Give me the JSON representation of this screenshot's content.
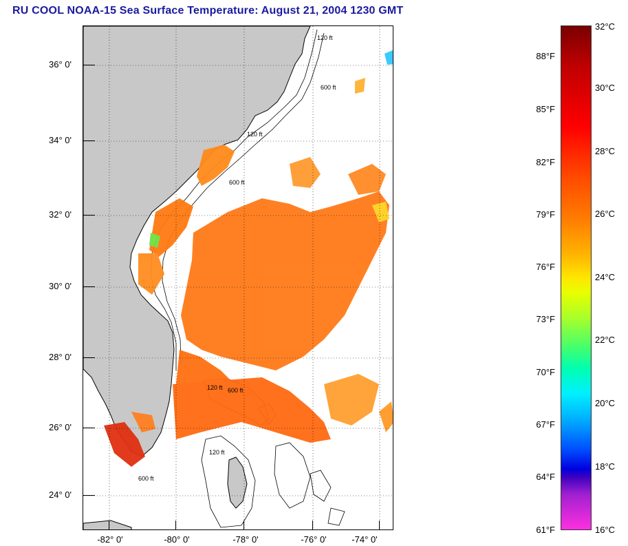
{
  "title": "RU COOL  NOAA-15  Sea Surface Temperature:  August 21, 2004 1230 GMT",
  "map": {
    "lat_labels": [
      "36° 0'",
      "34° 0'",
      "32° 0'",
      "30° 0'",
      "28° 0'",
      "26° 0'",
      "24° 0'"
    ],
    "lon_labels": [
      "-82° 0'",
      "-80° 0'",
      "-78° 0'",
      "-76° 0'",
      "-74° 0'"
    ],
    "isobath_labels": [
      "120 ft",
      "600 ft",
      "120 ft",
      "600 ft",
      "120 ft",
      "600 ft",
      "120 ft",
      "600 ft"
    ],
    "colors": {
      "land": "#c8c8c8",
      "ocean_no_data": "#ffffff",
      "coastline": "#000000"
    }
  },
  "colorbar": {
    "fahrenheit_labels": [
      "88°F",
      "85°F",
      "82°F",
      "79°F",
      "76°F",
      "73°F",
      "70°F",
      "67°F",
      "64°F",
      "61°F"
    ],
    "celsius_labels": [
      "32°C",
      "30°C",
      "28°C",
      "26°C",
      "24°C",
      "22°C",
      "20°C",
      "18°C",
      "16°C"
    ]
  }
}
